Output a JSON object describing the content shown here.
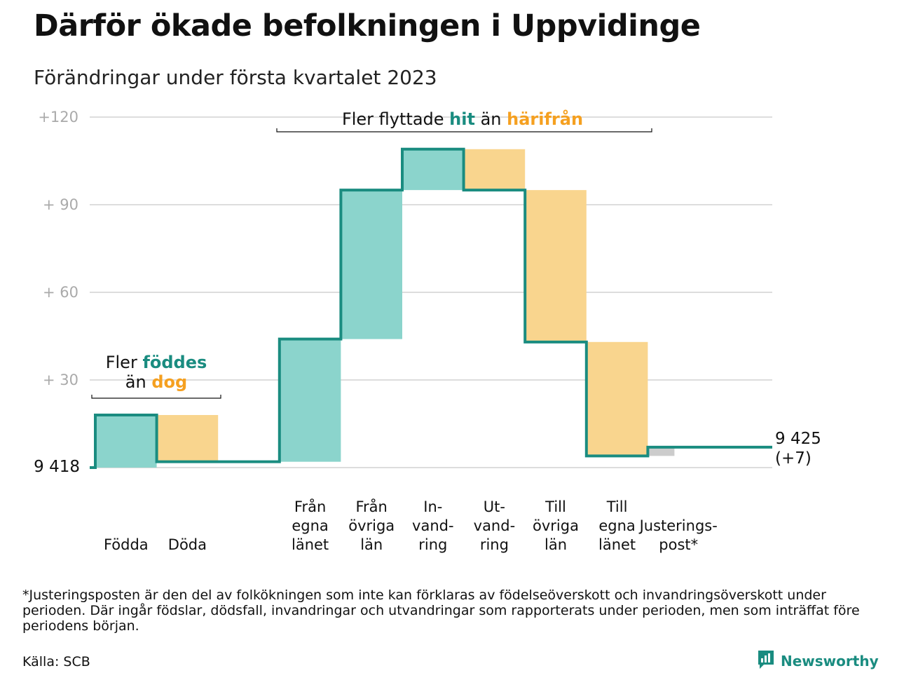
{
  "header": {
    "title": "Därför ökade befolkningen i Uppvidinge",
    "subtitle": "Förändringar under första kvartalet 2023"
  },
  "colors": {
    "increase_fill": "#8bd4cc",
    "decrease_fill": "#f9d58e",
    "adjustment_fill": "#cccccc",
    "line": "#1a8c80",
    "teal_text": "#1a8c80",
    "orange_text": "#f5a020",
    "grid": "#dddddd",
    "tick_text": "#aaaaaa"
  },
  "chart_data": {
    "type": "waterfall",
    "start_label": "9 418",
    "start_value": 9418,
    "end_label_line1": "9 425",
    "end_label_line2": "(+7)",
    "end_value": 9425,
    "y_ticks": [
      "+120",
      "+ 90",
      "+ 60",
      "+ 30"
    ],
    "y_tick_values": [
      120,
      90,
      60,
      30
    ],
    "ylim": [
      0,
      120
    ],
    "steps": [
      {
        "label": [
          "Födda"
        ],
        "change": 18,
        "kind": "increase"
      },
      {
        "label": [
          "Döda"
        ],
        "change": -16,
        "kind": "decrease"
      },
      {
        "label": [],
        "change": 0,
        "kind": "gap"
      },
      {
        "label": [
          "Från",
          "egna",
          "länet"
        ],
        "change": 42,
        "kind": "increase"
      },
      {
        "label": [
          "Från",
          "övriga",
          "län"
        ],
        "change": 51,
        "kind": "increase"
      },
      {
        "label": [
          "In-",
          "vand-",
          "ring"
        ],
        "change": 14,
        "kind": "increase"
      },
      {
        "label": [
          "Ut-",
          "vand-",
          "ring"
        ],
        "change": -14,
        "kind": "decrease"
      },
      {
        "label": [
          "Till",
          "övriga",
          "län"
        ],
        "change": -52,
        "kind": "decrease"
      },
      {
        "label": [
          "Till",
          "egna",
          "länet"
        ],
        "change": -39,
        "kind": "decrease"
      },
      {
        "label": [
          "Justerings-",
          "post*"
        ],
        "change": 3,
        "kind": "adjustment"
      }
    ],
    "annotations": [
      {
        "parts": [
          {
            "text": "Fler ",
            "color": "dark"
          },
          {
            "text": "föddes",
            "color": "teal"
          }
        ],
        "parts2": [
          {
            "text": "än ",
            "color": "dark"
          },
          {
            "text": "dog",
            "color": "orange"
          }
        ]
      },
      {
        "parts": [
          {
            "text": "Fler flyttade ",
            "color": "dark"
          },
          {
            "text": "hit",
            "color": "teal"
          },
          {
            "text": " än ",
            "color": "dark"
          },
          {
            "text": "härifrån",
            "color": "orange"
          }
        ]
      }
    ]
  },
  "footer": {
    "footnote": "*Justeringsposten är den del av folkökningen som inte kan förklaras av födelseöverskott och invandringsöverskott under perioden. Där ingår födslar, dödsfall, invandringar och utvandringar som rapporterats under perioden, men som inträffat före periodens början.",
    "source": "Källa: SCB",
    "brand": "Newsworthy"
  }
}
